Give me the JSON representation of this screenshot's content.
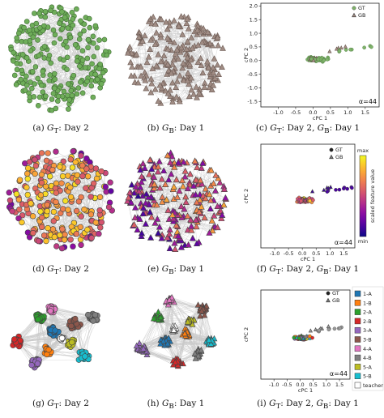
{
  "captions": [
    {
      "tag": "(a)",
      "g": "G",
      "sub": "T",
      "rest": ": Day 2"
    },
    {
      "tag": "(b)",
      "g": "G",
      "sub": "B",
      "rest": ": Day 1"
    },
    {
      "tag": "(c)",
      "g": "G",
      "sub": "T",
      "rest": ": Day 2, ",
      "g2": "G",
      "sub2": "B",
      "rest2": ": Day 1"
    },
    {
      "tag": "(d)",
      "g": "G",
      "sub": "T",
      "rest": ": Day 2"
    },
    {
      "tag": "(e)",
      "g": "G",
      "sub": "B",
      "rest": ": Day 1"
    },
    {
      "tag": "(f)",
      "g": "G",
      "sub": "T",
      "rest": ": Day 2, ",
      "g2": "G",
      "sub2": "B",
      "rest2": ": Day 1"
    },
    {
      "tag": "(g)",
      "g": "G",
      "sub": "T",
      "rest": ": Day 2"
    },
    {
      "tag": "(h)",
      "g": "G",
      "sub": "B",
      "rest": ": Day 1"
    },
    {
      "tag": "(i)",
      "g": "G",
      "sub": "T",
      "rest": ": Day 2, ",
      "g2": "G",
      "sub2": "B",
      "rest2": ": Day 1"
    }
  ],
  "scatter": {
    "xlabel": "cPC 1",
    "ylabel": "cPC 2",
    "xticks": [
      "-1.0",
      "-0.5",
      "0.0",
      "0.5",
      "1.0",
      "1.5"
    ],
    "yticks": [
      "2.0",
      "1.5",
      "1.0",
      "0.5",
      "0.0",
      "-0.5",
      "-1.0",
      "-1.5"
    ],
    "alpha_label": "α=44",
    "legend": [
      {
        "marker": "circle",
        "name": "G_T"
      },
      {
        "marker": "triangle",
        "name": "G_B"
      }
    ]
  },
  "colorbar": {
    "max_label": "max",
    "min_label": "min",
    "title": "scaled feature value"
  },
  "class_legend": [
    {
      "name": "1-A",
      "color": "#1f77b4"
    },
    {
      "name": "1-B",
      "color": "#ff7f0e"
    },
    {
      "name": "2-A",
      "color": "#2ca02c"
    },
    {
      "name": "2-B",
      "color": "#d62728"
    },
    {
      "name": "3-A",
      "color": "#9467bd"
    },
    {
      "name": "3-B",
      "color": "#8c564b"
    },
    {
      "name": "4-A",
      "color": "#e377c2"
    },
    {
      "name": "4-B",
      "color": "#7f7f7f"
    },
    {
      "name": "5-A",
      "color": "#bcbd22"
    },
    {
      "name": "5-B",
      "color": "#17becf"
    },
    {
      "name": "teacher",
      "color": "#ffffff"
    }
  ],
  "colors": {
    "gt_green": "#6fae5a",
    "gb_brown": "#a08c84",
    "edge_gray": "#b8b8b8"
  },
  "chart_data": [
    {
      "type": "scatter",
      "panel": "(c)",
      "xlim": [
        -1.5,
        1.9
      ],
      "ylim": [
        -1.7,
        2.1
      ],
      "series": [
        {
          "name": "G_T",
          "marker": "circle"
        },
        {
          "name": "G_B",
          "marker": "triangle"
        }
      ]
    },
    {
      "type": "scatter",
      "panel": "(f)",
      "xlim": [
        -1.5,
        1.9
      ],
      "ylim": [
        -1.7,
        2.1
      ],
      "series": [
        {
          "name": "G_T",
          "marker": "circle"
        },
        {
          "name": "G_B",
          "marker": "triangle"
        }
      ]
    },
    {
      "type": "scatter",
      "panel": "(i)",
      "xlim": [
        -1.5,
        1.9
      ],
      "ylim": [
        -1.7,
        2.1
      ],
      "series": [
        {
          "name": "G_T",
          "marker": "circle"
        },
        {
          "name": "G_B",
          "marker": "triangle"
        }
      ]
    }
  ]
}
